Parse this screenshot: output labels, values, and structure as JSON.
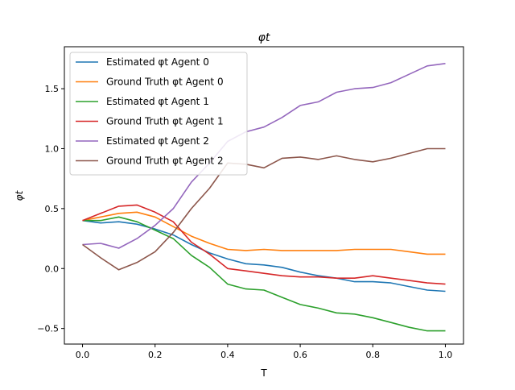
{
  "chart_data": {
    "type": "line",
    "title": "φt",
    "xlabel": "T",
    "ylabel": "φt",
    "xlim": [
      -0.05,
      1.05
    ],
    "ylim": [
      -0.63,
      1.85
    ],
    "xticks": [
      0.0,
      0.2,
      0.4,
      0.6,
      0.8,
      1.0
    ],
    "xtick_labels": [
      "0.0",
      "0.2",
      "0.4",
      "0.6",
      "0.8",
      "1.0"
    ],
    "yticks": [
      -0.5,
      0.0,
      0.5,
      1.0,
      1.5
    ],
    "ytick_labels": [
      "−0.5",
      "0.0",
      "0.5",
      "1.0",
      "1.5"
    ],
    "grid": false,
    "legend_position": "upper-left",
    "series": [
      {
        "name": "Estimated φt Agent 0",
        "color": "#1f77b4",
        "x": [
          0.0,
          0.05,
          0.1,
          0.15,
          0.2,
          0.25,
          0.3,
          0.35,
          0.4,
          0.45,
          0.5,
          0.55,
          0.6,
          0.65,
          0.7,
          0.75,
          0.8,
          0.85,
          0.9,
          0.95,
          1.0
        ],
        "y": [
          0.4,
          0.38,
          0.39,
          0.37,
          0.33,
          0.28,
          0.2,
          0.13,
          0.08,
          0.04,
          0.03,
          0.01,
          -0.03,
          -0.06,
          -0.08,
          -0.11,
          -0.11,
          -0.12,
          -0.15,
          -0.18,
          -0.19
        ]
      },
      {
        "name": "Ground Truth φt Agent 0",
        "color": "#ff7f0e",
        "x": [
          0.0,
          0.05,
          0.1,
          0.15,
          0.2,
          0.25,
          0.3,
          0.35,
          0.4,
          0.45,
          0.5,
          0.55,
          0.6,
          0.65,
          0.7,
          0.75,
          0.8,
          0.85,
          0.9,
          0.95,
          1.0
        ],
        "y": [
          0.4,
          0.43,
          0.46,
          0.47,
          0.43,
          0.35,
          0.27,
          0.21,
          0.16,
          0.15,
          0.16,
          0.15,
          0.15,
          0.15,
          0.15,
          0.16,
          0.16,
          0.16,
          0.14,
          0.12,
          0.12
        ]
      },
      {
        "name": "Estimated φt Agent 1",
        "color": "#2ca02c",
        "x": [
          0.0,
          0.05,
          0.1,
          0.15,
          0.2,
          0.25,
          0.3,
          0.35,
          0.4,
          0.45,
          0.5,
          0.55,
          0.6,
          0.65,
          0.7,
          0.75,
          0.8,
          0.85,
          0.9,
          0.95,
          1.0
        ],
        "y": [
          0.4,
          0.4,
          0.43,
          0.39,
          0.32,
          0.25,
          0.11,
          0.01,
          -0.13,
          -0.17,
          -0.18,
          -0.24,
          -0.3,
          -0.33,
          -0.37,
          -0.38,
          -0.41,
          -0.45,
          -0.49,
          -0.52,
          -0.52
        ]
      },
      {
        "name": "Ground Truth φt Agent 1",
        "color": "#d62728",
        "x": [
          0.0,
          0.05,
          0.1,
          0.15,
          0.2,
          0.25,
          0.3,
          0.35,
          0.4,
          0.45,
          0.5,
          0.55,
          0.6,
          0.65,
          0.7,
          0.75,
          0.8,
          0.85,
          0.9,
          0.95,
          1.0
        ],
        "y": [
          0.4,
          0.46,
          0.52,
          0.53,
          0.47,
          0.39,
          0.22,
          0.12,
          0.0,
          -0.02,
          -0.04,
          -0.06,
          -0.07,
          -0.07,
          -0.08,
          -0.08,
          -0.06,
          -0.08,
          -0.1,
          -0.12,
          -0.13
        ]
      },
      {
        "name": "Estimated φt Agent 2",
        "color": "#9467bd",
        "x": [
          0.0,
          0.05,
          0.1,
          0.15,
          0.2,
          0.25,
          0.3,
          0.35,
          0.4,
          0.45,
          0.5,
          0.55,
          0.6,
          0.65,
          0.7,
          0.75,
          0.8,
          0.85,
          0.9,
          0.95,
          1.0
        ],
        "y": [
          0.2,
          0.21,
          0.17,
          0.25,
          0.36,
          0.5,
          0.72,
          0.88,
          1.06,
          1.14,
          1.18,
          1.26,
          1.36,
          1.39,
          1.47,
          1.5,
          1.51,
          1.55,
          1.62,
          1.69,
          1.71
        ]
      },
      {
        "name": "Ground Truth φt Agent 2",
        "color": "#8c564b",
        "x": [
          0.0,
          0.05,
          0.1,
          0.15,
          0.2,
          0.25,
          0.3,
          0.35,
          0.4,
          0.45,
          0.5,
          0.55,
          0.6,
          0.65,
          0.7,
          0.75,
          0.8,
          0.85,
          0.9,
          0.95,
          1.0
        ],
        "y": [
          0.2,
          0.09,
          -0.01,
          0.05,
          0.14,
          0.3,
          0.5,
          0.67,
          0.88,
          0.87,
          0.84,
          0.92,
          0.93,
          0.91,
          0.94,
          0.91,
          0.89,
          0.92,
          0.96,
          1.0,
          1.0
        ]
      }
    ]
  }
}
